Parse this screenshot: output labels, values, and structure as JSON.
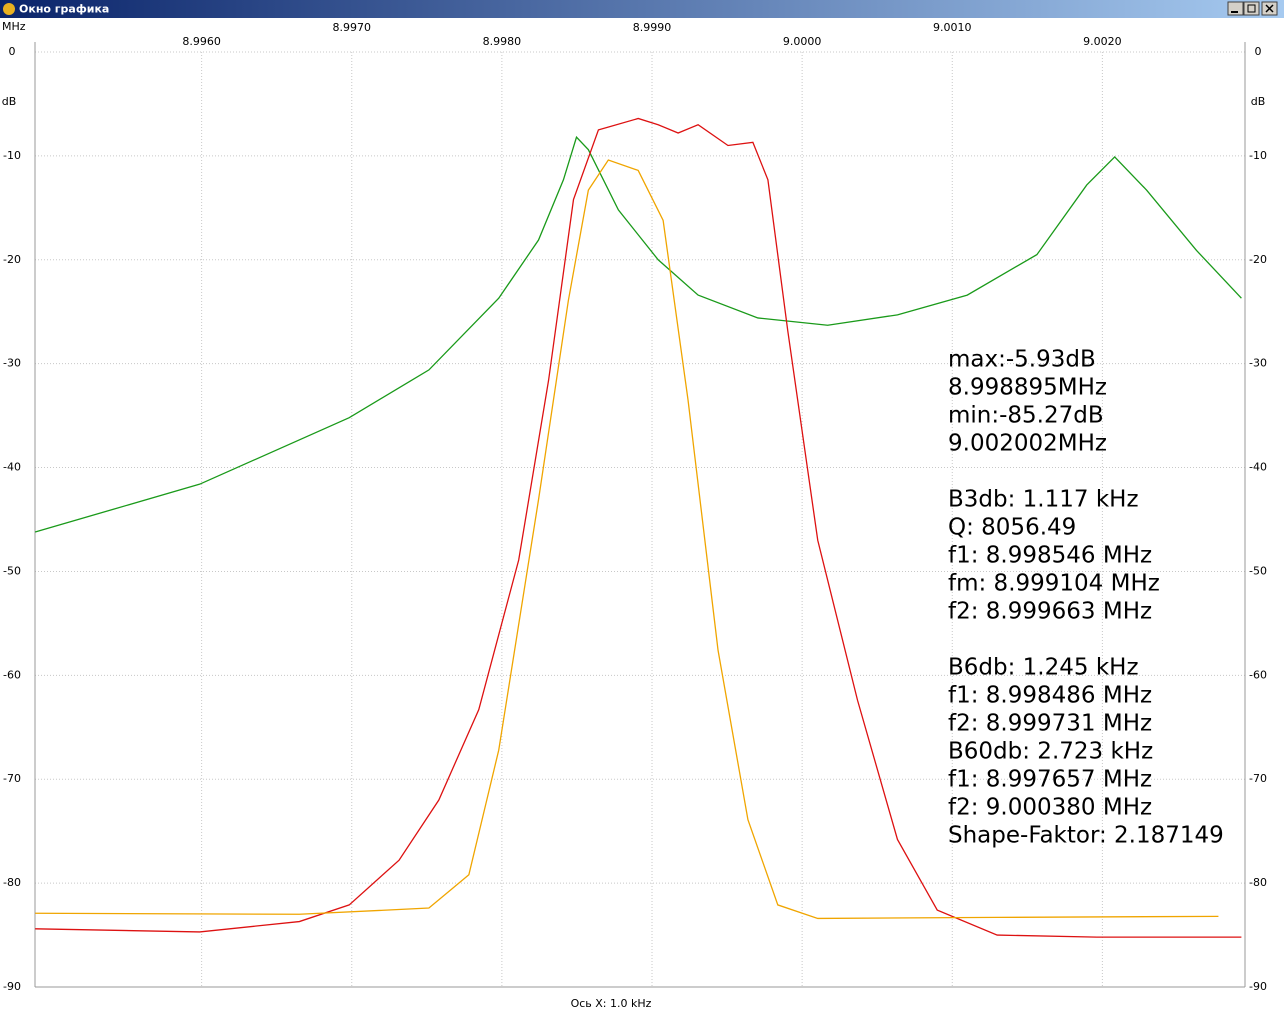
{
  "window": {
    "title": "Окно графика"
  },
  "chart_data": {
    "type": "line",
    "x_unit_label": "MHz",
    "y_unit_label": "dB",
    "x_axis_label": "Ось X: 1.0 kHz",
    "xlim": [
      8.99489,
      9.00295
    ],
    "xticks": [
      {
        "value": 8.996,
        "label": "8.9960"
      },
      {
        "value": 8.997,
        "label": "8.9970"
      },
      {
        "value": 8.998,
        "label": "8.9980"
      },
      {
        "value": 8.999,
        "label": "8.9990"
      },
      {
        "value": 9.0,
        "label": "9.0000"
      },
      {
        "value": 9.001,
        "label": "9.0010"
      },
      {
        "value": 9.002,
        "label": "9.0020"
      }
    ],
    "ylim": [
      -90,
      0
    ],
    "yticks": [
      0,
      -10,
      -20,
      -30,
      -40,
      -50,
      -60,
      -70,
      -80,
      -90
    ],
    "grid": true,
    "series": [
      {
        "color": "#1a9a1a",
        "x": [
          8.994891,
          8.995987,
          8.996983,
          8.997514,
          8.997979,
          8.998244,
          8.99841,
          8.998497,
          8.998576,
          8.998776,
          8.999041,
          8.999307,
          8.999705,
          9.00017,
          9.000635,
          9.0011,
          9.001564,
          9.001896,
          9.002082,
          9.002295,
          9.002627,
          9.002926
        ],
        "values": [
          -46.2,
          -41.6,
          -35.2,
          -30.6,
          -23.7,
          -18.1,
          -12.3,
          -8.2,
          -9.4,
          -15.2,
          -20.0,
          -23.4,
          -25.6,
          -26.3,
          -25.3,
          -23.4,
          -19.5,
          -12.8,
          -10.1,
          -13.3,
          -19.1,
          -23.7
        ]
      },
      {
        "color": "#dd1111",
        "x": [
          8.994891,
          8.995987,
          8.996651,
          8.996983,
          8.997315,
          8.99758,
          8.997846,
          8.998112,
          8.998311,
          8.998477,
          8.998643,
          8.998908,
          8.999041,
          8.999174,
          8.999307,
          8.999506,
          8.999672,
          8.999772,
          8.999904,
          9.000104,
          9.000369,
          9.000635,
          9.0009,
          9.001299,
          9.001963,
          9.002926
        ],
        "values": [
          -84.4,
          -84.7,
          -83.7,
          -82.1,
          -77.8,
          -72.0,
          -63.3,
          -48.9,
          -31.6,
          -14.2,
          -7.5,
          -6.4,
          -7.0,
          -7.8,
          -7.0,
          -9.0,
          -8.7,
          -12.3,
          -26.8,
          -47.0,
          -62.4,
          -75.8,
          -82.6,
          -85.0,
          -85.2,
          -85.2
        ]
      },
      {
        "color": "#f0a500",
        "x": [
          8.994891,
          8.996651,
          8.997514,
          8.99778,
          8.997979,
          8.998244,
          8.998443,
          8.998576,
          8.998709,
          8.998908,
          8.999074,
          8.99924,
          8.99944,
          8.999639,
          8.999838,
          9.000104,
          9.001299,
          9.002773
        ],
        "values": [
          -82.9,
          -83.0,
          -82.4,
          -79.2,
          -67.2,
          -43.1,
          -23.9,
          -13.3,
          -10.4,
          -11.4,
          -16.2,
          -33.5,
          -57.6,
          -73.9,
          -82.1,
          -83.4,
          -83.3,
          -83.2
        ]
      }
    ],
    "annotations": [
      [
        "max:-5.93dB",
        "8.998895MHz",
        "min:-85.27dB",
        "9.002002MHz"
      ],
      [
        "B3db: 1.117 kHz",
        "Q: 8056.49",
        "f1: 8.998546 MHz",
        "fm: 8.999104 MHz",
        "f2: 8.999663 MHz"
      ],
      [
        "B6db: 1.245 kHz",
        "f1: 8.998486 MHz",
        "f2: 8.999731 MHz",
        "B60db: 2.723 kHz",
        "f1: 8.997657 MHz",
        "f2: 9.000380 MHz",
        "Shape-Faktor: 2.187149"
      ]
    ]
  }
}
